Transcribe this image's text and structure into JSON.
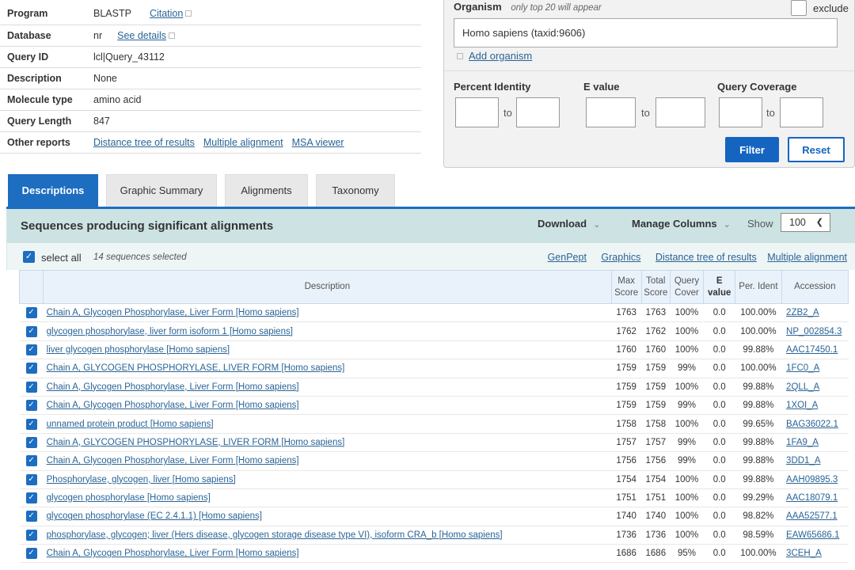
{
  "query_info": {
    "program": {
      "label": "Program",
      "value": "BLASTP",
      "link": "Citation"
    },
    "database": {
      "label": "Database",
      "value": "nr",
      "link": "See details"
    },
    "query_id": {
      "label": "Query ID",
      "value": "lcl|Query_43112"
    },
    "description": {
      "label": "Description",
      "value": "None"
    },
    "molecule_type": {
      "label": "Molecule type",
      "value": "amino acid"
    },
    "query_length": {
      "label": "Query Length",
      "value": "847"
    },
    "other_reports": {
      "label": "Other reports",
      "links": [
        "Distance tree of results",
        "Multiple alignment",
        "MSA viewer"
      ]
    }
  },
  "filter": {
    "organism_label": "Organism",
    "organism_hint": "only top 20 will appear",
    "exclude_label": "exclude",
    "organism_value": "Homo sapiens (taxid:9606)",
    "add_organism": "Add organism",
    "percent_identity": "Percent Identity",
    "e_value": "E value",
    "query_coverage": "Query Coverage",
    "to": "to",
    "filter_button": "Filter",
    "reset_button": "Reset"
  },
  "tabs": [
    "Descriptions",
    "Graphic Summary",
    "Alignments",
    "Taxonomy"
  ],
  "results": {
    "title": "Sequences producing significant alignments",
    "download": "Download",
    "manage_columns": "Manage Columns",
    "show_label": "Show",
    "show_value": "100",
    "select_all": "select all",
    "selected_count": "14 sequences selected",
    "links": [
      "GenPept",
      "Graphics",
      "Distance tree of results",
      "Multiple alignment"
    ],
    "columns": {
      "description": "Description",
      "max_score": "Max Score",
      "total_score": "Total Score",
      "query_cover": "Query Cover",
      "e_value": "E value",
      "per_ident": "Per. Ident",
      "accession": "Accession"
    },
    "rows": [
      {
        "desc": "Chain A, Glycogen Phosphorylase, Liver Form [Homo sapiens]",
        "max": "1763",
        "total": "1763",
        "cover": "100%",
        "e": "0.0",
        "ident": "100.00%",
        "acc": "2ZB2_A"
      },
      {
        "desc": "glycogen phosphorylase, liver form isoform 1 [Homo sapiens]",
        "max": "1762",
        "total": "1762",
        "cover": "100%",
        "e": "0.0",
        "ident": "100.00%",
        "acc": "NP_002854.3"
      },
      {
        "desc": "liver glycogen phosphorylase [Homo sapiens]",
        "max": "1760",
        "total": "1760",
        "cover": "100%",
        "e": "0.0",
        "ident": "99.88%",
        "acc": "AAC17450.1"
      },
      {
        "desc": "Chain A, GLYCOGEN PHOSPHORYLASE, LIVER FORM [Homo sapiens]",
        "max": "1759",
        "total": "1759",
        "cover": "99%",
        "e": "0.0",
        "ident": "100.00%",
        "acc": "1FC0_A"
      },
      {
        "desc": "Chain A, Glycogen Phosphorylase, Liver Form [Homo sapiens]",
        "max": "1759",
        "total": "1759",
        "cover": "100%",
        "e": "0.0",
        "ident": "99.88%",
        "acc": "2QLL_A"
      },
      {
        "desc": "Chain A, Glycogen Phosphorylase, Liver Form [Homo sapiens]",
        "max": "1759",
        "total": "1759",
        "cover": "99%",
        "e": "0.0",
        "ident": "99.88%",
        "acc": "1XOI_A"
      },
      {
        "desc": "unnamed protein product [Homo sapiens]",
        "max": "1758",
        "total": "1758",
        "cover": "100%",
        "e": "0.0",
        "ident": "99.65%",
        "acc": "BAG36022.1"
      },
      {
        "desc": "Chain A, GLYCOGEN PHOSPHORYLASE, LIVER FORM [Homo sapiens]",
        "max": "1757",
        "total": "1757",
        "cover": "99%",
        "e": "0.0",
        "ident": "99.88%",
        "acc": "1FA9_A"
      },
      {
        "desc": "Chain A, Glycogen Phosphorylase, Liver Form [Homo sapiens]",
        "max": "1756",
        "total": "1756",
        "cover": "99%",
        "e": "0.0",
        "ident": "99.88%",
        "acc": "3DD1_A"
      },
      {
        "desc": "Phosphorylase, glycogen, liver [Homo sapiens]",
        "max": "1754",
        "total": "1754",
        "cover": "100%",
        "e": "0.0",
        "ident": "99.88%",
        "acc": "AAH09895.3"
      },
      {
        "desc": "glycogen phosphorylase [Homo sapiens]",
        "max": "1751",
        "total": "1751",
        "cover": "100%",
        "e": "0.0",
        "ident": "99.29%",
        "acc": "AAC18079.1"
      },
      {
        "desc": "glycogen phosphorylase (EC 2.4.1.1) [Homo sapiens]",
        "max": "1740",
        "total": "1740",
        "cover": "100%",
        "e": "0.0",
        "ident": "98.82%",
        "acc": "AAA52577.1"
      },
      {
        "desc": "phosphorylase, glycogen; liver (Hers disease, glycogen storage disease type VI), isoform CRA_b [Homo sapiens]",
        "max": "1736",
        "total": "1736",
        "cover": "100%",
        "e": "0.0",
        "ident": "98.59%",
        "acc": "EAW65686.1"
      },
      {
        "desc": "Chain A, Glycogen Phosphorylase, Liver Form [Homo sapiens]",
        "max": "1686",
        "total": "1686",
        "cover": "95%",
        "e": "0.0",
        "ident": "100.00%",
        "acc": "3CEH_A"
      }
    ]
  }
}
